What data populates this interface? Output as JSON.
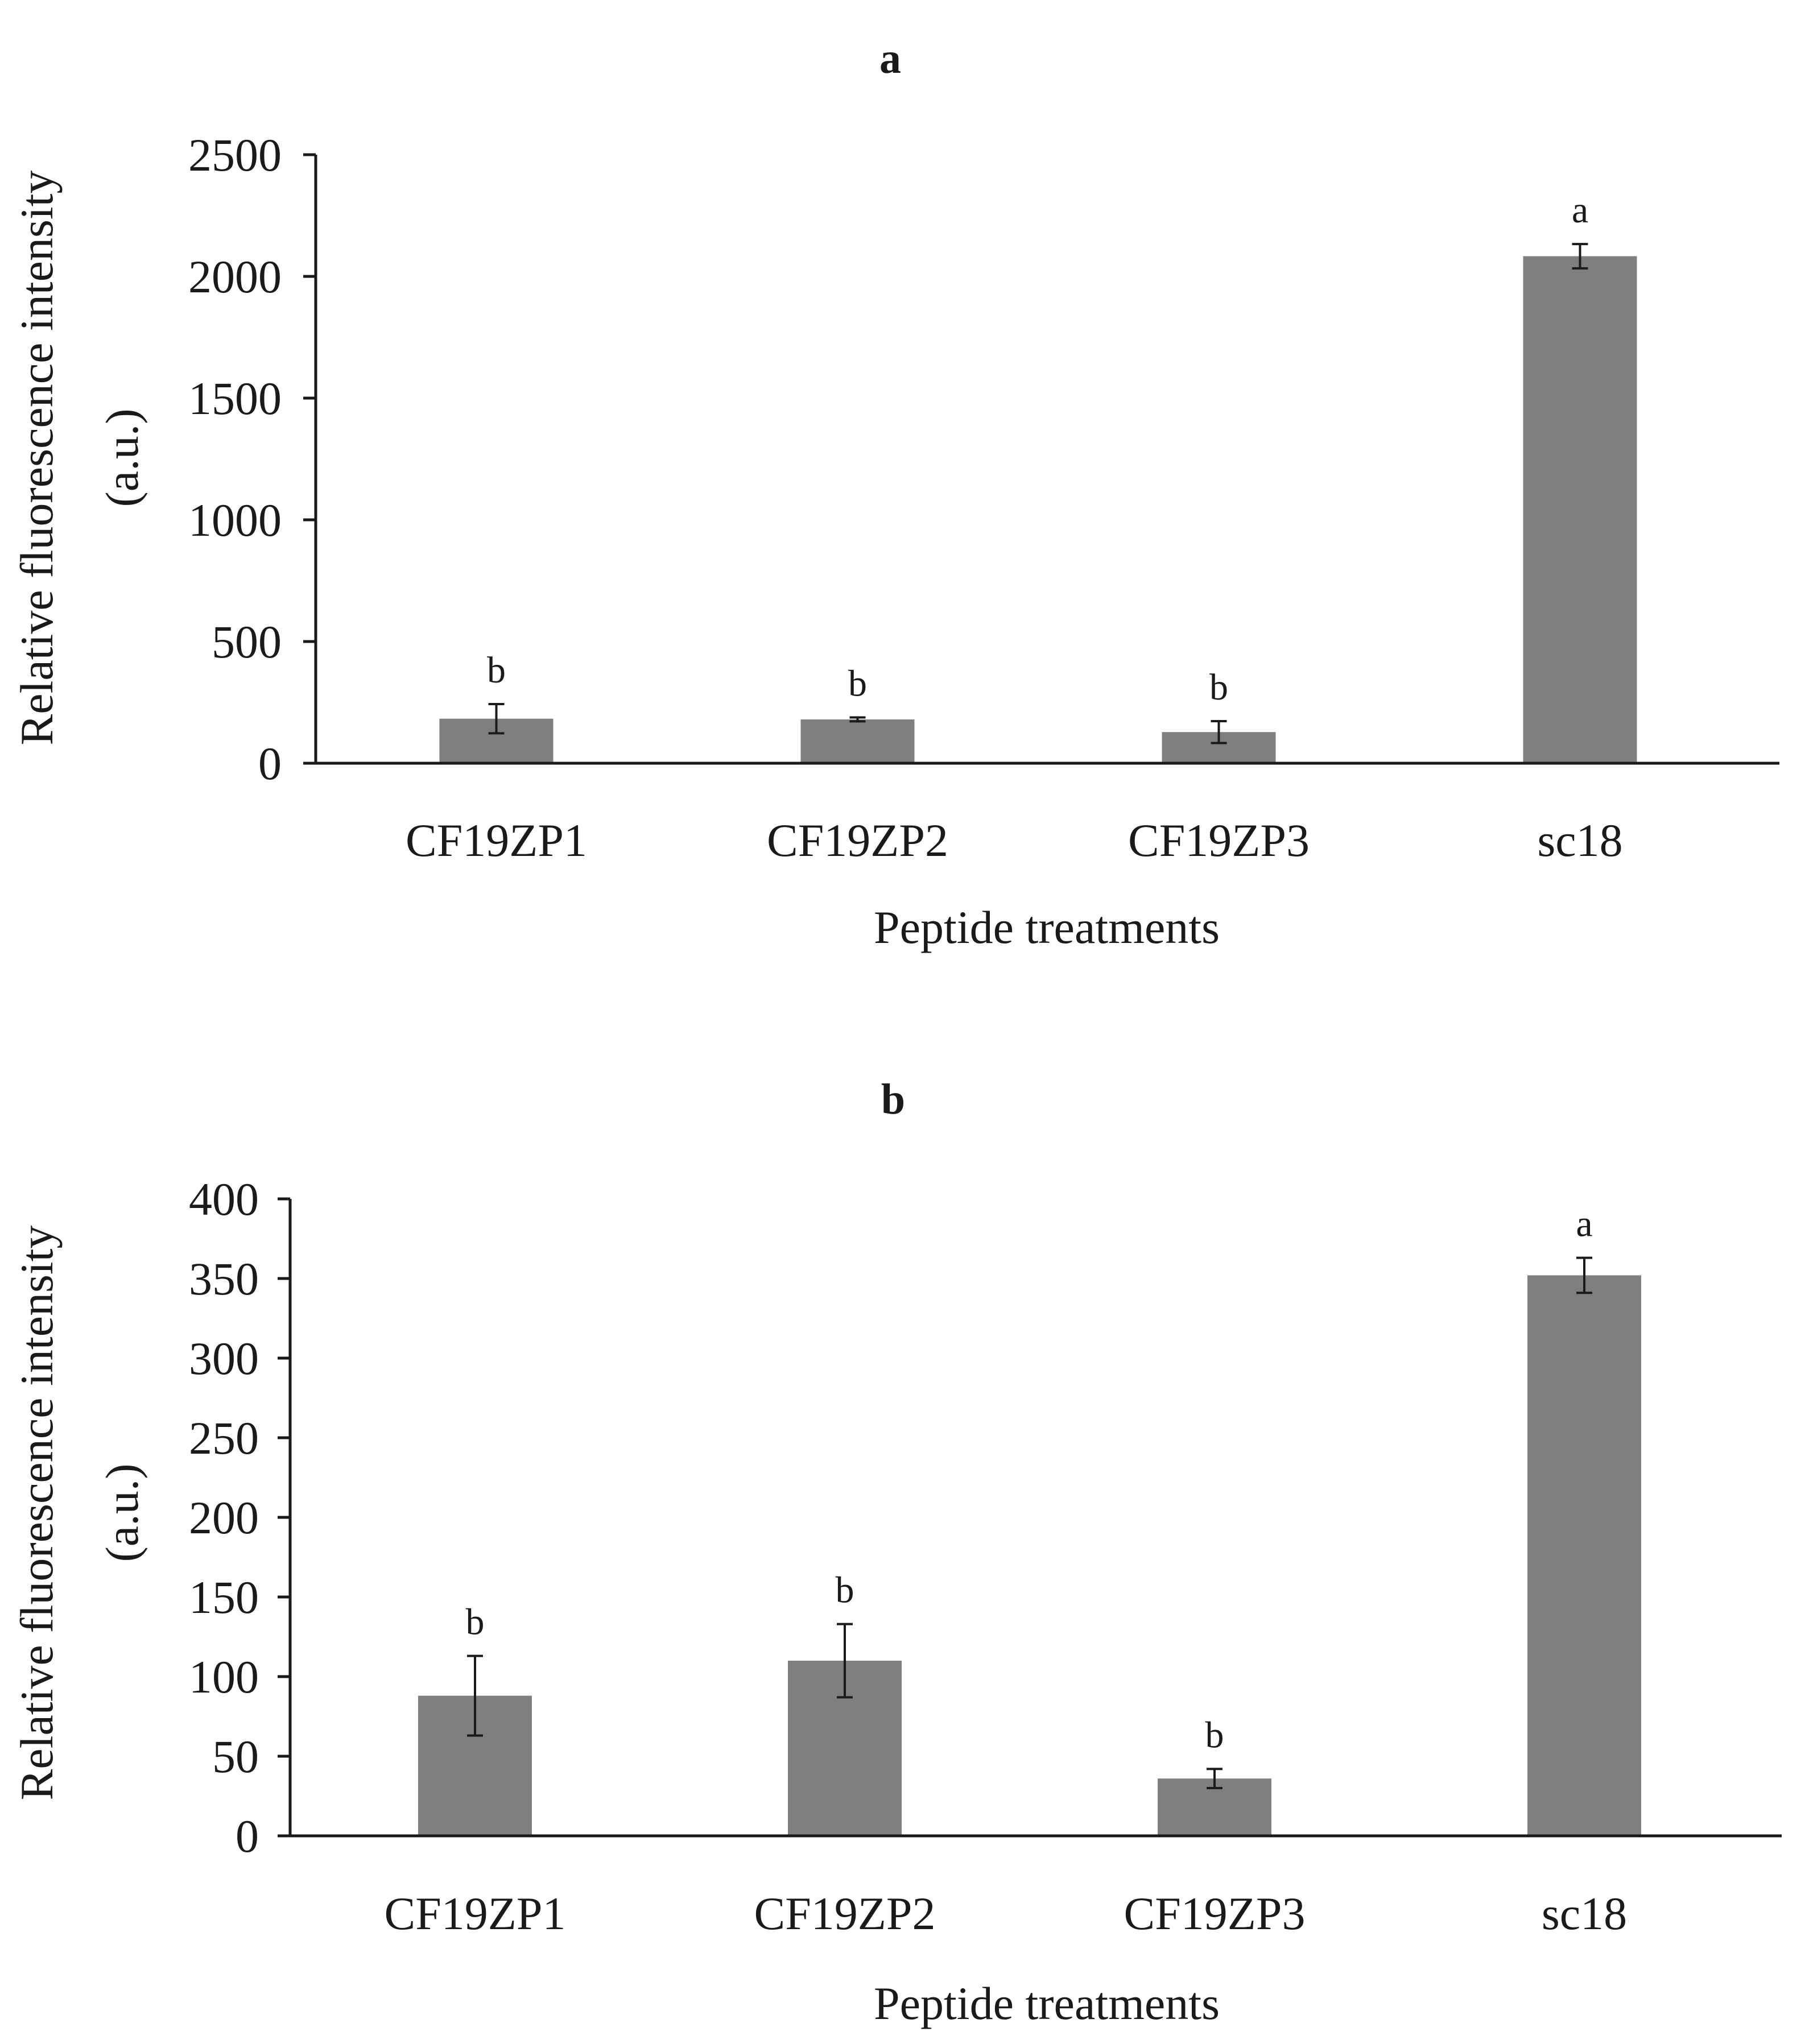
{
  "chart_data": [
    {
      "type": "bar",
      "title": "a",
      "xlabel": "Peptide treatments",
      "ylabel_line1": "Relative fluorescence intensity",
      "ylabel_line2": "(a.u.)",
      "categories": [
        "CF19ZP1",
        "CF19ZP2",
        "CF19ZP3",
        "sc18"
      ],
      "values": [
        183,
        180,
        128,
        2083
      ],
      "errors": [
        60,
        8,
        45,
        50
      ],
      "letters": [
        "b",
        "b",
        "b",
        "a"
      ],
      "ylim": [
        0,
        2500
      ],
      "yticks": [
        0,
        500,
        1000,
        1500,
        2000,
        2500
      ],
      "bar_color": "#7f7f7f",
      "grid": false
    },
    {
      "type": "bar",
      "title": "b",
      "xlabel": "Peptide treatments",
      "ylabel_line1": "Relative fluorescence intensity",
      "ylabel_line2": "(a.u.)",
      "categories": [
        "CF19ZP1",
        "CF19ZP2",
        "CF19ZP3",
        "sc18"
      ],
      "values": [
        88,
        110,
        36,
        352
      ],
      "errors": [
        25,
        23,
        6,
        11
      ],
      "letters": [
        "b",
        "b",
        "b",
        "a"
      ],
      "ylim": [
        0,
        400
      ],
      "yticks": [
        0,
        50,
        100,
        150,
        200,
        250,
        300,
        350,
        400
      ],
      "bar_color": "#7f7f7f",
      "grid": false
    }
  ]
}
